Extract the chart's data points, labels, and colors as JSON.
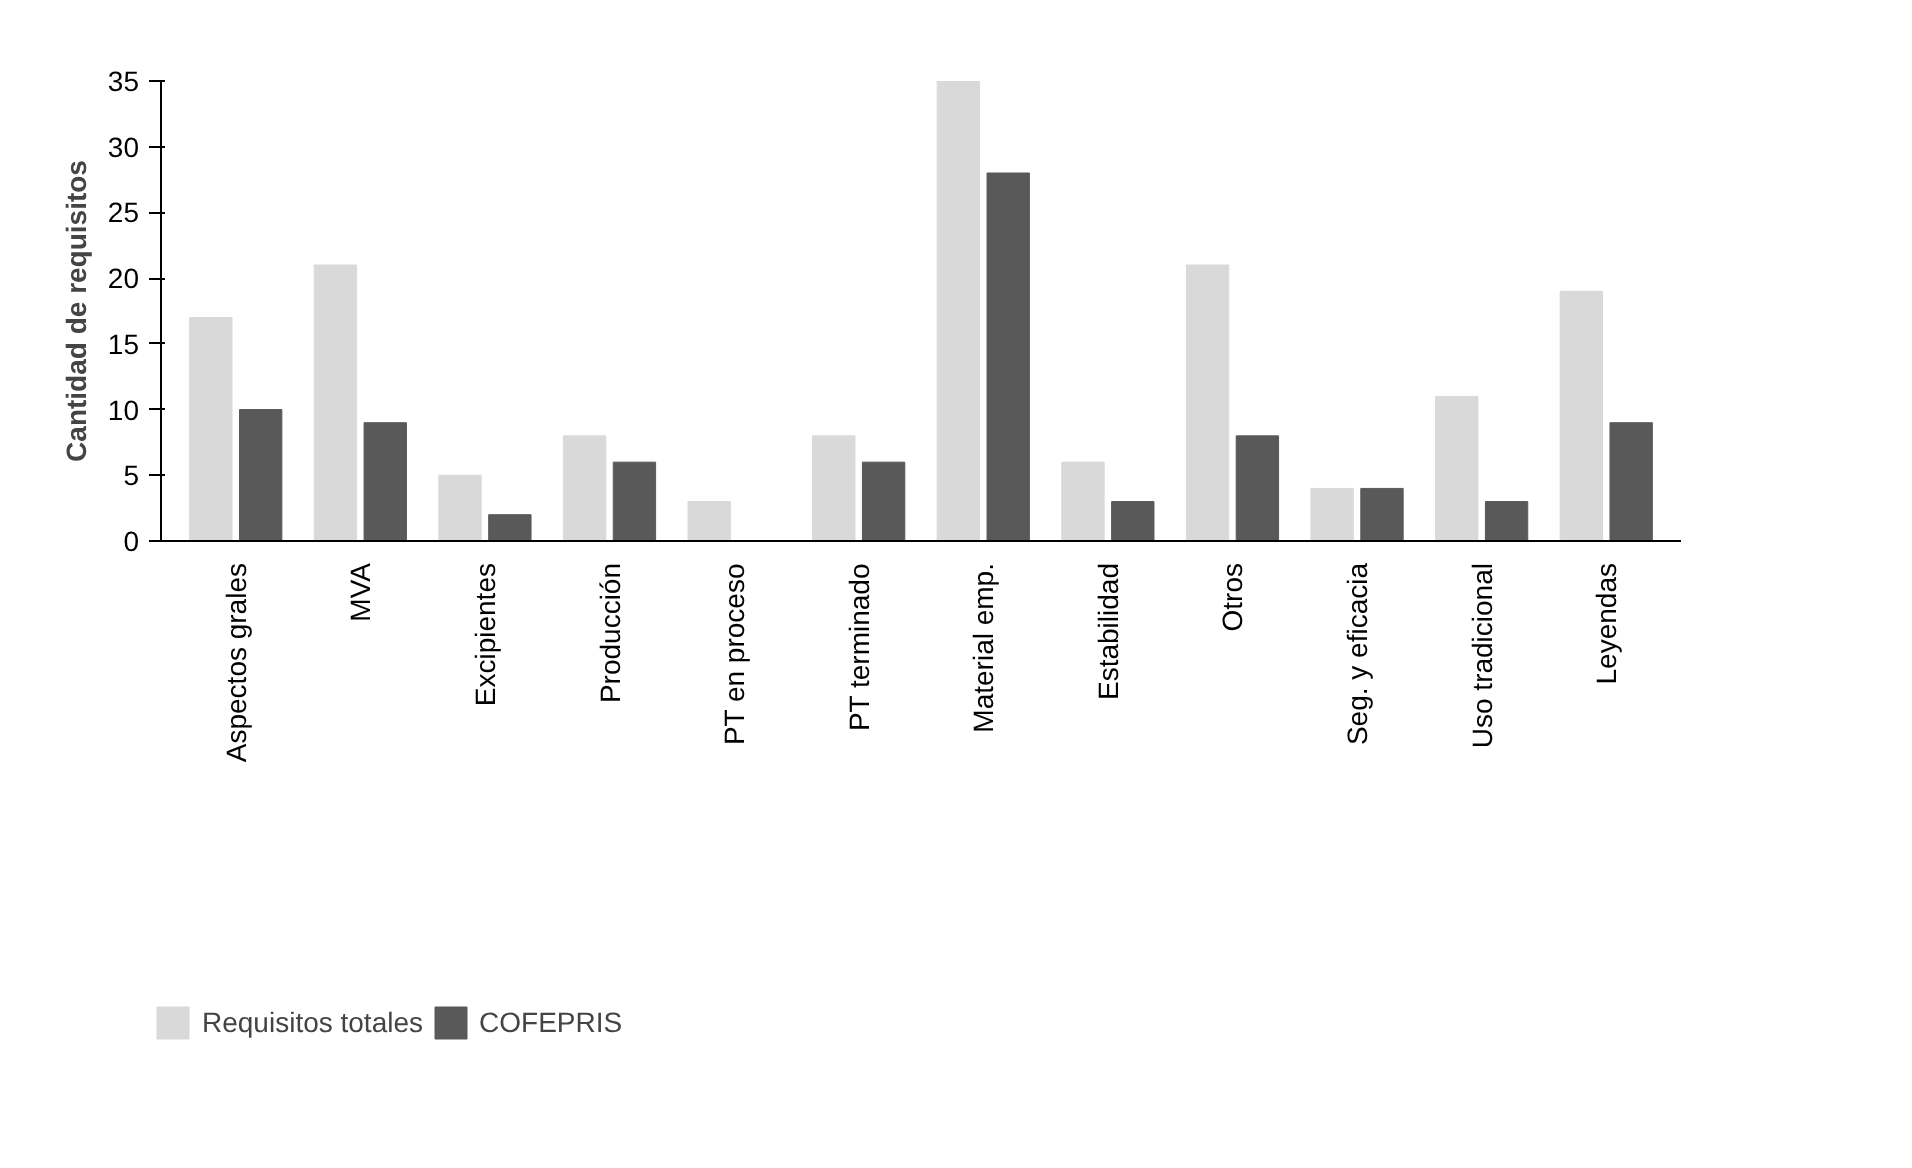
{
  "chart_data": {
    "type": "bar",
    "ylabel": "Cantidad de requisitos",
    "categories": [
      "Aspectos grales",
      "MVA",
      "Excipientes",
      "Producción",
      "PT en proceso",
      "PT terminado",
      "Material emp.",
      "Estabilidad",
      "Otros",
      "Seg. y eficacia",
      "Uso tradicional",
      "Leyendas"
    ],
    "series": [
      {
        "name": "Requisitos totales",
        "color": "#d9d9d9",
        "values": [
          17,
          21,
          5,
          8,
          3,
          8,
          35,
          6,
          21,
          4,
          11,
          19
        ]
      },
      {
        "name": "COFEPRIS",
        "color": "#595959",
        "values": [
          10,
          9,
          2,
          6,
          0,
          6,
          28,
          3,
          8,
          4,
          3,
          9
        ]
      }
    ],
    "ylim": [
      0,
      35
    ],
    "yticks": [
      0,
      5,
      10,
      15,
      20,
      25,
      30,
      35
    ],
    "grid": false,
    "legend": "bottom left"
  }
}
